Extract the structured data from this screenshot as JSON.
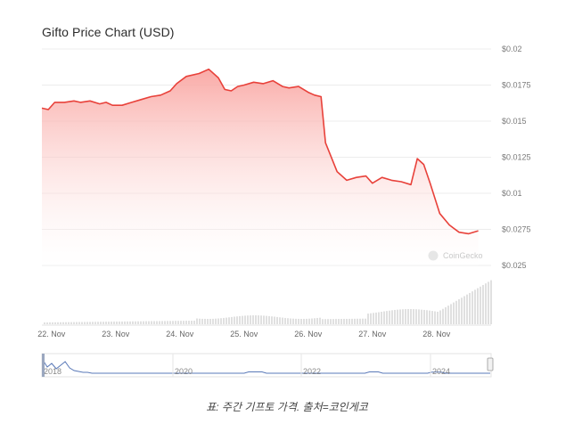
{
  "title": "Gifto Price Chart (USD)",
  "caption": "표: 주간 기프토 가격. 출처=코인게코",
  "watermark": "CoinGecko",
  "colors": {
    "line": "#e8413a",
    "area_top": "#f9a19d",
    "area_bottom": "#ffffff",
    "volume": "#e0e0e0",
    "navigator": "#4a6fb0"
  },
  "chart_data": {
    "type": "area",
    "title": "Gifto Price Chart (USD)",
    "xlabel": "",
    "ylabel": "",
    "x_ticks": [
      "22. Nov",
      "23. Nov",
      "24. Nov",
      "25. Nov",
      "26. Nov",
      "27. Nov",
      "28. Nov"
    ],
    "y_ticks": [
      "$0.02",
      "$0.0175",
      "$0.015",
      "$0.0125",
      "$0.01",
      "$0.0275",
      "$0.025"
    ],
    "ylim": [
      0.005,
      0.02
    ],
    "xlim": [
      0,
      7.0
    ],
    "grid": true,
    "series": [
      {
        "values": [
          [
            0.0,
            0.0159
          ],
          [
            0.1,
            0.0158
          ],
          [
            0.2,
            0.0163
          ],
          [
            0.35,
            0.0163
          ],
          [
            0.5,
            0.0164
          ],
          [
            0.6,
            0.0163
          ],
          [
            0.75,
            0.0164
          ],
          [
            0.9,
            0.0162
          ],
          [
            1.0,
            0.0163
          ],
          [
            1.1,
            0.0161
          ],
          [
            1.25,
            0.0161
          ],
          [
            1.4,
            0.0163
          ],
          [
            1.55,
            0.0165
          ],
          [
            1.7,
            0.0167
          ],
          [
            1.85,
            0.0168
          ],
          [
            2.0,
            0.0171
          ],
          [
            2.1,
            0.0176
          ],
          [
            2.25,
            0.0181
          ],
          [
            2.45,
            0.0183
          ],
          [
            2.6,
            0.0186
          ],
          [
            2.75,
            0.018
          ],
          [
            2.85,
            0.0172
          ],
          [
            2.95,
            0.0171
          ],
          [
            3.05,
            0.0174
          ],
          [
            3.15,
            0.0175
          ],
          [
            3.3,
            0.0177
          ],
          [
            3.45,
            0.0176
          ],
          [
            3.6,
            0.0178
          ],
          [
            3.75,
            0.0174
          ],
          [
            3.85,
            0.0173
          ],
          [
            4.0,
            0.0174
          ],
          [
            4.15,
            0.017
          ],
          [
            4.25,
            0.0168
          ],
          [
            4.35,
            0.0167
          ],
          [
            4.42,
            0.0135
          ],
          [
            4.6,
            0.0115
          ],
          [
            4.75,
            0.0109
          ],
          [
            4.9,
            0.0111
          ],
          [
            5.05,
            0.0112
          ],
          [
            5.15,
            0.0107
          ],
          [
            5.3,
            0.0111
          ],
          [
            5.45,
            0.0109
          ],
          [
            5.6,
            0.0108
          ],
          [
            5.75,
            0.0106
          ],
          [
            5.85,
            0.0124
          ],
          [
            5.95,
            0.012
          ],
          [
            6.05,
            0.0107
          ],
          [
            6.2,
            0.0086
          ],
          [
            6.35,
            0.0078
          ],
          [
            6.5,
            0.0073
          ],
          [
            6.65,
            0.0072
          ],
          [
            6.8,
            0.0074
          ]
        ]
      }
    ],
    "navigator_ticks": [
      "2018",
      "2020",
      "2022",
      "2024"
    ],
    "volume_note": "volume bars at bottom, increasing toward the right"
  }
}
